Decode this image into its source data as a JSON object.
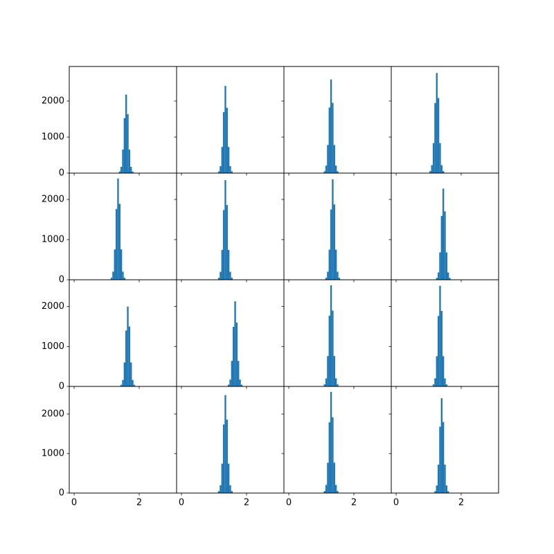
{
  "chart_data": [
    {
      "type": "histogram",
      "color": "#1f77b4",
      "bins": [
        1.375,
        1.425,
        1.475,
        1.525,
        1.575,
        1.625,
        1.675,
        1.725,
        1.775,
        1.825
      ],
      "values": [
        44,
        174,
        654,
        1526,
        2180,
        1635,
        654,
        174,
        44
      ],
      "xlim": [
        -0.15,
        3.15
      ],
      "ylim": [
        0,
        2960
      ],
      "xticks": [
        0,
        2
      ],
      "yticks": [
        0,
        1000,
        2000
      ]
    },
    {
      "type": "histogram",
      "color": "#1f77b4",
      "bins": [
        1.125,
        1.175,
        1.225,
        1.275,
        1.325,
        1.375,
        1.425,
        1.475,
        1.525,
        1.575
      ],
      "values": [
        48,
        194,
        726,
        1694,
        2420,
        1815,
        726,
        194,
        48
      ],
      "xlim": [
        -0.15,
        3.15
      ],
      "ylim": [
        0,
        2960
      ],
      "xticks": [
        0,
        2
      ],
      "yticks": [
        0,
        1000,
        2000
      ]
    },
    {
      "type": "histogram",
      "color": "#1f77b4",
      "bins": [
        1.075,
        1.125,
        1.175,
        1.225,
        1.275,
        1.325,
        1.375,
        1.425,
        1.475,
        1.525
      ],
      "values": [
        52,
        208,
        780,
        1820,
        2600,
        1950,
        780,
        208,
        52
      ],
      "xlim": [
        -0.15,
        3.15
      ],
      "ylim": [
        0,
        2960
      ],
      "xticks": [
        0,
        2
      ],
      "yticks": [
        0,
        1000,
        2000
      ]
    },
    {
      "type": "histogram",
      "color": "#1f77b4",
      "bins": [
        1.025,
        1.075,
        1.125,
        1.175,
        1.225,
        1.275,
        1.325,
        1.375,
        1.425,
        1.475
      ],
      "values": [
        56,
        222,
        834,
        1946,
        2780,
        2085,
        834,
        222,
        56
      ],
      "xlim": [
        -0.15,
        3.15
      ],
      "ylim": [
        0,
        2960
      ],
      "xticks": [
        0,
        2
      ],
      "yticks": [
        0,
        1000,
        2000
      ]
    },
    {
      "type": "histogram",
      "color": "#1f77b4",
      "bins": [
        1.125,
        1.175,
        1.225,
        1.275,
        1.325,
        1.375,
        1.425,
        1.475,
        1.525,
        1.575
      ],
      "values": [
        50,
        202,
        756,
        1764,
        2520,
        1890,
        756,
        202,
        50
      ],
      "xlim": [
        -0.15,
        3.15
      ],
      "ylim": [
        0,
        2655
      ],
      "xticks": [
        0,
        2
      ],
      "yticks": [
        0,
        1000,
        2000
      ]
    },
    {
      "type": "histogram",
      "color": "#1f77b4",
      "bins": [
        1.125,
        1.175,
        1.225,
        1.275,
        1.325,
        1.375,
        1.425,
        1.475,
        1.525,
        1.575
      ],
      "values": [
        50,
        198,
        744,
        1736,
        2480,
        1860,
        744,
        198,
        50
      ],
      "xlim": [
        -0.15,
        3.15
      ],
      "ylim": [
        0,
        2655
      ],
      "xticks": [
        0,
        2
      ],
      "yticks": [
        0,
        1000,
        2000
      ]
    },
    {
      "type": "histogram",
      "color": "#1f77b4",
      "bins": [
        1.125,
        1.175,
        1.225,
        1.275,
        1.325,
        1.375,
        1.425,
        1.475,
        1.525,
        1.575
      ],
      "values": [
        50,
        200,
        750,
        1750,
        2500,
        1875,
        750,
        200,
        50
      ],
      "xlim": [
        -0.15,
        3.15
      ],
      "ylim": [
        0,
        2655
      ],
      "xticks": [
        0,
        2
      ],
      "yticks": [
        0,
        1000,
        2000
      ]
    },
    {
      "type": "histogram",
      "color": "#1f77b4",
      "bins": [
        1.225,
        1.275,
        1.325,
        1.375,
        1.425,
        1.475,
        1.525,
        1.575,
        1.625,
        1.675
      ],
      "values": [
        45,
        182,
        681,
        1589,
        2270,
        1703,
        681,
        182,
        45
      ],
      "xlim": [
        -0.15,
        3.15
      ],
      "ylim": [
        0,
        2655
      ],
      "xticks": [
        0,
        2
      ],
      "yticks": [
        0,
        1000,
        2000
      ]
    },
    {
      "type": "histogram",
      "color": "#1f77b4",
      "bins": [
        1.425,
        1.475,
        1.525,
        1.575,
        1.625,
        1.675,
        1.725,
        1.775,
        1.825,
        1.875
      ],
      "values": [
        40,
        160,
        600,
        1400,
        2000,
        1500,
        600,
        160,
        40
      ],
      "xlim": [
        -0.15,
        3.15
      ],
      "ylim": [
        0,
        2670
      ],
      "xticks": [
        0,
        2
      ],
      "yticks": [
        0,
        1000,
        2000
      ]
    },
    {
      "type": "histogram",
      "color": "#1f77b4",
      "bins": [
        1.425,
        1.475,
        1.525,
        1.575,
        1.625,
        1.675,
        1.725,
        1.775,
        1.825,
        1.875
      ],
      "values": [
        43,
        170,
        639,
        1491,
        2130,
        1598,
        639,
        170,
        43
      ],
      "xlim": [
        -0.15,
        3.15
      ],
      "ylim": [
        0,
        2670
      ],
      "xticks": [
        0,
        2
      ],
      "yticks": [
        0,
        1000,
        2000
      ]
    },
    {
      "type": "histogram",
      "color": "#1f77b4",
      "bins": [
        1.075,
        1.125,
        1.175,
        1.225,
        1.275,
        1.325,
        1.375,
        1.425,
        1.475,
        1.525
      ],
      "values": [
        51,
        202,
        759,
        1771,
        2530,
        1898,
        759,
        202,
        51
      ],
      "xlim": [
        -0.15,
        3.15
      ],
      "ylim": [
        0,
        2670
      ],
      "xticks": [
        0,
        2
      ],
      "yticks": [
        0,
        1000,
        2000
      ]
    },
    {
      "type": "histogram",
      "color": "#1f77b4",
      "bins": [
        1.125,
        1.175,
        1.225,
        1.275,
        1.325,
        1.375,
        1.425,
        1.475,
        1.525,
        1.575
      ],
      "values": [
        50,
        202,
        756,
        1764,
        2520,
        1890,
        756,
        202,
        50
      ],
      "xlim": [
        -0.15,
        3.15
      ],
      "ylim": [
        0,
        2670
      ],
      "xticks": [
        0,
        2
      ],
      "yticks": [
        0,
        1000,
        2000
      ]
    },
    {
      "type": "histogram",
      "color": "#1f77b4",
      "bins": [],
      "values": [],
      "xlim": [
        -0.15,
        3.15
      ],
      "ylim": [
        0,
        2700
      ],
      "xticks": [
        0,
        2
      ],
      "yticks": [
        0,
        1000,
        2000
      ]
    },
    {
      "type": "histogram",
      "color": "#1f77b4",
      "bins": [
        1.125,
        1.175,
        1.225,
        1.275,
        1.325,
        1.375,
        1.425,
        1.475,
        1.525,
        1.575
      ],
      "values": [
        50,
        198,
        744,
        1736,
        2480,
        1860,
        744,
        198,
        50
      ],
      "xlim": [
        -0.15,
        3.15
      ],
      "ylim": [
        0,
        2700
      ],
      "xticks": [
        0,
        2
      ],
      "yticks": [
        0,
        1000,
        2000
      ]
    },
    {
      "type": "histogram",
      "color": "#1f77b4",
      "bins": [
        1.075,
        1.125,
        1.175,
        1.225,
        1.275,
        1.325,
        1.375,
        1.425,
        1.475,
        1.525
      ],
      "values": [
        51,
        205,
        768,
        1792,
        2560,
        1920,
        768,
        205,
        51
      ],
      "xlim": [
        -0.15,
        3.15
      ],
      "ylim": [
        0,
        2700
      ],
      "xticks": [
        0,
        2
      ],
      "yticks": [
        0,
        1000,
        2000
      ]
    },
    {
      "type": "histogram",
      "color": "#1f77b4",
      "bins": [
        1.175,
        1.225,
        1.275,
        1.325,
        1.375,
        1.425,
        1.475,
        1.525,
        1.575,
        1.625
      ],
      "values": [
        48,
        192,
        720,
        1680,
        2400,
        1800,
        720,
        192,
        48
      ],
      "xlim": [
        -0.15,
        3.15
      ],
      "ylim": [
        0,
        2700
      ],
      "xticks": [
        0,
        2
      ],
      "yticks": [
        0,
        1000,
        2000
      ]
    }
  ]
}
